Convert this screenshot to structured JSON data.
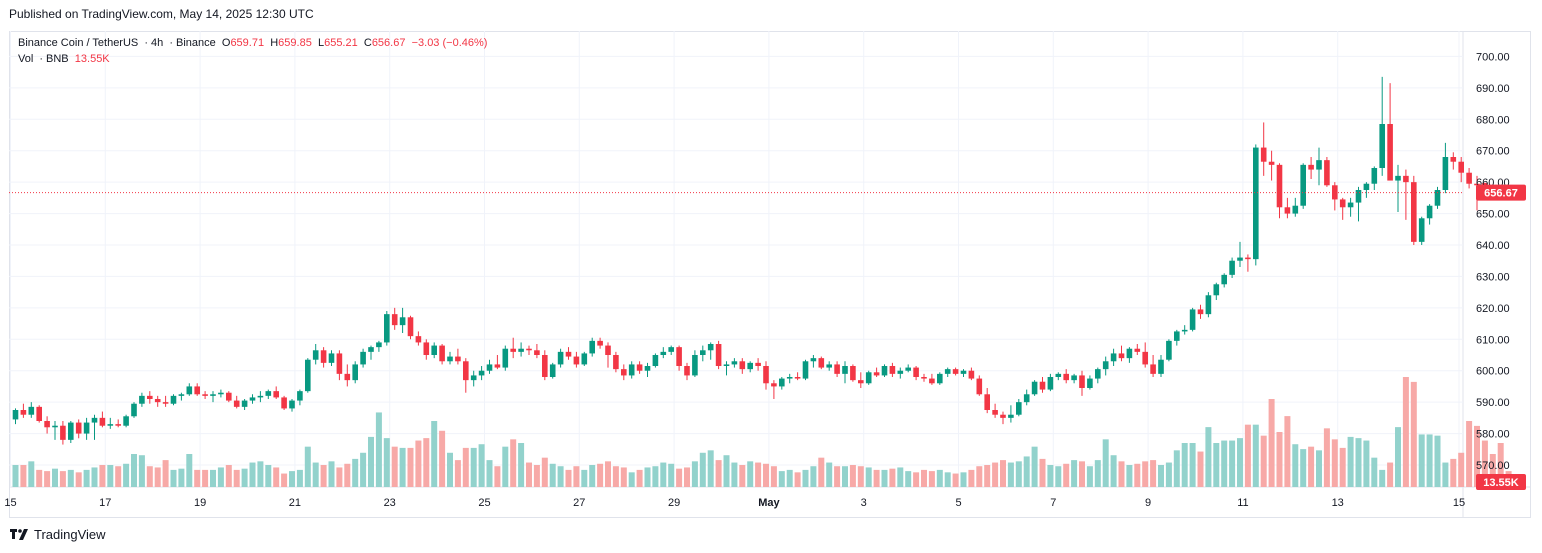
{
  "published": "Published on TradingView.com, May 14, 2025 12:30 UTC",
  "legend": {
    "symbol": "Binance Coin / TetherUS",
    "interval": "4h",
    "exchange": "Binance",
    "o_label": "O",
    "o": "659.71",
    "h_label": "H",
    "h": "659.85",
    "l_label": "L",
    "l": "655.21",
    "c_label": "C",
    "c": "656.67",
    "change": "−3.03 (−0.46%)",
    "vol_label": "Vol",
    "vol_asset": "BNB",
    "vol_value": "13.55K"
  },
  "price_badge": "656.67",
  "volume_badge": "13.55K",
  "footer": {
    "brand": "TradingView"
  },
  "colors": {
    "up": "#089981",
    "down": "#f23645",
    "vol_up": "#92d2cc",
    "vol_down": "#f7a9a7",
    "grid": "#f0f3fa",
    "text": "#131722"
  },
  "chart_data": {
    "type": "candlestick",
    "timeframe": "4h",
    "ylim": [
      563,
      703
    ],
    "y_ticks": [
      "570.00",
      "580.00",
      "590.00",
      "600.00",
      "610.00",
      "620.00",
      "630.00",
      "640.00",
      "650.00",
      "660.00",
      "670.00",
      "680.00",
      "690.00",
      "700.00"
    ],
    "x_ticks": [
      "15",
      "17",
      "19",
      "21",
      "23",
      "25",
      "27",
      "29",
      "May",
      "3",
      "5",
      "7",
      "9",
      "11",
      "13",
      "15"
    ],
    "last_price": 656.67,
    "candles": [
      [
        584.5,
        588.0,
        583.0,
        587.5
      ],
      [
        587.5,
        589.5,
        585.0,
        586.0
      ],
      [
        586.0,
        590.0,
        585.0,
        588.5
      ],
      [
        588.5,
        589.0,
        583.5,
        584.0
      ],
      [
        584.0,
        585.5,
        580.0,
        582.0
      ],
      [
        582.0,
        584.0,
        578.0,
        582.5
      ],
      [
        582.5,
        584.0,
        576.5,
        578.0
      ],
      [
        578.0,
        584.0,
        577.0,
        583.5
      ],
      [
        583.5,
        584.5,
        578.5,
        580.0
      ],
      [
        580.0,
        585.0,
        578.0,
        583.5
      ],
      [
        583.5,
        586.0,
        578.0,
        585.0
      ],
      [
        585.0,
        587.0,
        582.0,
        582.5
      ],
      [
        582.5,
        585.0,
        581.5,
        583.0
      ],
      [
        583.0,
        584.5,
        582.0,
        582.5
      ],
      [
        582.5,
        586.0,
        582.0,
        585.5
      ],
      [
        585.5,
        590.0,
        585.0,
        589.5
      ],
      [
        589.5,
        593.0,
        588.5,
        592.0
      ],
      [
        592.0,
        593.5,
        589.5,
        591.0
      ],
      [
        591.0,
        592.0,
        588.5,
        590.0
      ],
      [
        590.0,
        592.0,
        588.5,
        589.5
      ],
      [
        589.5,
        592.5,
        589.0,
        592.0
      ],
      [
        592.0,
        593.0,
        590.5,
        592.5
      ],
      [
        592.5,
        596.0,
        592.0,
        595.0
      ],
      [
        595.0,
        596.0,
        592.0,
        592.5
      ],
      [
        592.5,
        593.5,
        591.0,
        592.0
      ],
      [
        592.0,
        593.5,
        590.0,
        592.5
      ],
      [
        592.5,
        594.0,
        591.5,
        593.0
      ],
      [
        593.0,
        593.5,
        590.0,
        590.5
      ],
      [
        590.5,
        592.0,
        588.0,
        588.5
      ],
      [
        588.5,
        591.0,
        587.5,
        590.5
      ],
      [
        590.5,
        592.5,
        589.5,
        591.5
      ],
      [
        591.5,
        593.5,
        590.0,
        592.0
      ],
      [
        592.0,
        594.0,
        591.0,
        593.5
      ],
      [
        593.5,
        595.0,
        591.0,
        591.5
      ],
      [
        591.5,
        592.0,
        587.5,
        588.0
      ],
      [
        588.0,
        591.0,
        587.0,
        590.5
      ],
      [
        590.5,
        594.0,
        589.0,
        593.5
      ],
      [
        593.5,
        604.0,
        593.0,
        603.5
      ],
      [
        603.5,
        608.5,
        602.0,
        606.5
      ],
      [
        606.5,
        607.5,
        601.0,
        602.5
      ],
      [
        602.5,
        606.5,
        601.5,
        605.5
      ],
      [
        605.5,
        606.5,
        597.0,
        599.0
      ],
      [
        599.0,
        602.0,
        595.0,
        597.0
      ],
      [
        597.0,
        603.0,
        596.0,
        602.0
      ],
      [
        602.0,
        607.0,
        601.0,
        606.0
      ],
      [
        606.0,
        608.0,
        603.5,
        607.5
      ],
      [
        607.5,
        609.5,
        606.0,
        609.0
      ],
      [
        609.0,
        619.0,
        608.0,
        618.0
      ],
      [
        618.0,
        620.0,
        613.0,
        614.5
      ],
      [
        614.5,
        620.0,
        612.0,
        617.0
      ],
      [
        617.0,
        617.5,
        610.0,
        611.0
      ],
      [
        611.0,
        612.5,
        608.0,
        609.0
      ],
      [
        609.0,
        610.0,
        603.5,
        605.0
      ],
      [
        605.0,
        609.0,
        604.0,
        608.0
      ],
      [
        608.0,
        608.5,
        602.0,
        603.0
      ],
      [
        603.0,
        606.0,
        602.0,
        604.5
      ],
      [
        604.5,
        607.0,
        602.0,
        603.0
      ],
      [
        603.0,
        604.0,
        593.0,
        597.0
      ],
      [
        597.0,
        600.0,
        595.0,
        598.5
      ],
      [
        598.5,
        601.5,
        597.0,
        600.0
      ],
      [
        600.0,
        603.5,
        599.0,
        602.0
      ],
      [
        602.0,
        605.0,
        600.5,
        601.0
      ],
      [
        601.0,
        608.0,
        600.0,
        607.0
      ],
      [
        607.0,
        610.5,
        604.0,
        606.0
      ],
      [
        606.0,
        609.0,
        604.5,
        607.0
      ],
      [
        607.0,
        608.0,
        605.0,
        606.5
      ],
      [
        606.5,
        608.5,
        604.0,
        605.0
      ],
      [
        605.0,
        606.5,
        597.0,
        598.0
      ],
      [
        598.0,
        602.5,
        597.5,
        602.0
      ],
      [
        602.0,
        607.0,
        601.0,
        606.0
      ],
      [
        606.0,
        607.5,
        603.5,
        604.5
      ],
      [
        604.5,
        606.0,
        601.0,
        602.0
      ],
      [
        602.0,
        606.0,
        601.5,
        605.5
      ],
      [
        605.5,
        610.5,
        604.5,
        609.5
      ],
      [
        609.5,
        610.5,
        607.0,
        608.0
      ],
      [
        608.0,
        609.0,
        601.0,
        605.0
      ],
      [
        605.0,
        606.0,
        599.5,
        600.5
      ],
      [
        600.5,
        602.0,
        597.0,
        598.5
      ],
      [
        598.5,
        603.0,
        597.5,
        602.0
      ],
      [
        602.0,
        603.0,
        599.0,
        600.0
      ],
      [
        600.0,
        602.5,
        598.0,
        601.5
      ],
      [
        601.5,
        605.5,
        601.0,
        605.0
      ],
      [
        605.0,
        607.5,
        604.0,
        606.0
      ],
      [
        606.0,
        608.0,
        605.0,
        607.5
      ],
      [
        607.5,
        608.0,
        600.0,
        601.5
      ],
      [
        601.5,
        602.5,
        597.0,
        598.5
      ],
      [
        598.5,
        606.5,
        598.0,
        605.0
      ],
      [
        605.0,
        608.0,
        603.0,
        606.5
      ],
      [
        606.5,
        609.0,
        603.5,
        608.5
      ],
      [
        608.5,
        609.5,
        600.5,
        601.5
      ],
      [
        601.5,
        603.0,
        598.5,
        602.0
      ],
      [
        602.0,
        604.0,
        601.0,
        603.0
      ],
      [
        603.0,
        604.0,
        599.0,
        600.5
      ],
      [
        600.5,
        603.0,
        599.5,
        602.5
      ],
      [
        602.5,
        604.0,
        600.0,
        601.5
      ],
      [
        601.5,
        603.0,
        594.0,
        596.0
      ],
      [
        596.0,
        597.0,
        591.0,
        595.0
      ],
      [
        595.0,
        598.0,
        594.0,
        597.5
      ],
      [
        597.5,
        599.0,
        596.0,
        598.0
      ],
      [
        598.0,
        599.5,
        597.0,
        597.5
      ],
      [
        597.5,
        603.5,
        597.0,
        603.0
      ],
      [
        603.0,
        605.0,
        601.0,
        604.0
      ],
      [
        604.0,
        604.5,
        600.5,
        601.0
      ],
      [
        601.0,
        603.0,
        600.0,
        602.0
      ],
      [
        602.0,
        603.0,
        598.0,
        599.0
      ],
      [
        599.0,
        603.0,
        596.0,
        601.5
      ],
      [
        601.5,
        602.0,
        596.5,
        597.0
      ],
      [
        597.0,
        599.5,
        594.5,
        596.0
      ],
      [
        596.0,
        600.0,
        595.5,
        599.5
      ],
      [
        599.5,
        601.0,
        598.0,
        598.5
      ],
      [
        598.5,
        602.0,
        598.0,
        601.5
      ],
      [
        601.5,
        602.5,
        598.0,
        599.0
      ],
      [
        599.0,
        601.0,
        597.5,
        600.0
      ],
      [
        600.0,
        602.0,
        599.5,
        601.0
      ],
      [
        601.0,
        601.5,
        597.0,
        598.0
      ],
      [
        598.0,
        599.0,
        596.5,
        597.5
      ],
      [
        597.5,
        599.0,
        595.5,
        596.0
      ],
      [
        596.0,
        599.5,
        595.5,
        599.0
      ],
      [
        599.0,
        601.0,
        598.0,
        600.5
      ],
      [
        600.5,
        601.0,
        598.5,
        599.0
      ],
      [
        599.0,
        600.5,
        598.0,
        600.0
      ],
      [
        600.0,
        601.0,
        597.0,
        597.5
      ],
      [
        597.5,
        598.5,
        592.0,
        592.5
      ],
      [
        592.5,
        594.5,
        586.5,
        587.5
      ],
      [
        587.5,
        589.5,
        585.0,
        586.0
      ],
      [
        586.0,
        587.0,
        583.0,
        585.0
      ],
      [
        585.0,
        589.0,
        583.5,
        586.0
      ],
      [
        586.0,
        591.0,
        585.5,
        590.0
      ],
      [
        590.0,
        594.0,
        589.0,
        592.5
      ],
      [
        592.5,
        597.0,
        592.0,
        596.5
      ],
      [
        596.5,
        598.0,
        593.0,
        594.0
      ],
      [
        594.0,
        599.0,
        593.5,
        598.0
      ],
      [
        598.0,
        599.5,
        597.0,
        599.0
      ],
      [
        599.0,
        600.5,
        596.0,
        597.0
      ],
      [
        597.0,
        599.0,
        596.0,
        598.5
      ],
      [
        598.5,
        600.0,
        592.0,
        594.5
      ],
      [
        594.5,
        598.5,
        594.0,
        597.5
      ],
      [
        597.5,
        601.0,
        596.0,
        600.5
      ],
      [
        600.5,
        604.5,
        598.5,
        603.0
      ],
      [
        603.0,
        607.0,
        601.5,
        605.5
      ],
      [
        605.5,
        608.0,
        603.0,
        604.0
      ],
      [
        604.0,
        607.5,
        602.5,
        607.0
      ],
      [
        607.0,
        608.5,
        605.0,
        606.0
      ],
      [
        606.0,
        609.0,
        601.0,
        602.0
      ],
      [
        602.0,
        605.0,
        598.0,
        599.0
      ],
      [
        599.0,
        605.0,
        598.0,
        603.5
      ],
      [
        603.5,
        610.0,
        603.0,
        609.5
      ],
      [
        609.5,
        613.0,
        608.0,
        612.5
      ],
      [
        612.5,
        614.5,
        611.5,
        613.0
      ],
      [
        613.0,
        620.0,
        612.5,
        619.5
      ],
      [
        619.5,
        621.0,
        616.5,
        618.0
      ],
      [
        618.0,
        625.0,
        617.0,
        624.0
      ],
      [
        624.0,
        628.0,
        622.5,
        627.5
      ],
      [
        627.5,
        631.0,
        626.5,
        630.5
      ],
      [
        630.5,
        636.0,
        629.5,
        635.0
      ],
      [
        635.0,
        641.0,
        633.0,
        636.0
      ],
      [
        636.0,
        637.0,
        631.5,
        635.5
      ],
      [
        635.5,
        672.0,
        633.5,
        671.0
      ],
      [
        671.0,
        679.0,
        662.0,
        666.5
      ],
      [
        666.5,
        670.0,
        660.5,
        665.5
      ],
      [
        665.5,
        666.0,
        648.5,
        652.0
      ],
      [
        652.0,
        655.0,
        648.5,
        650.0
      ],
      [
        650.0,
        655.0,
        649.0,
        652.5
      ],
      [
        652.5,
        666.0,
        651.5,
        665.5
      ],
      [
        665.5,
        668.0,
        661.0,
        664.0
      ],
      [
        664.0,
        671.0,
        659.0,
        667.0
      ],
      [
        667.0,
        668.0,
        658.5,
        659.0
      ],
      [
        659.0,
        660.0,
        651.0,
        654.5
      ],
      [
        654.5,
        655.0,
        648.0,
        652.0
      ],
      [
        652.0,
        655.0,
        649.0,
        653.5
      ],
      [
        653.5,
        658.5,
        647.5,
        657.5
      ],
      [
        657.5,
        660.0,
        655.0,
        659.5
      ],
      [
        659.5,
        665.0,
        657.5,
        664.5
      ],
      [
        664.5,
        693.5,
        662.0,
        678.5
      ],
      [
        678.5,
        691.5,
        661.0,
        660.5
      ],
      [
        660.5,
        665.5,
        650.5,
        662.0
      ],
      [
        662.0,
        664.0,
        648.0,
        660.0
      ],
      [
        660.0,
        662.0,
        640.0,
        641.0
      ],
      [
        641.0,
        649.0,
        640.0,
        648.5
      ],
      [
        648.5,
        653.0,
        646.5,
        652.5
      ],
      [
        652.5,
        658.5,
        651.5,
        657.5
      ],
      [
        657.5,
        672.5,
        656.5,
        668.0
      ],
      [
        668.0,
        669.5,
        664.0,
        666.5
      ],
      [
        666.5,
        668.0,
        660.0,
        663.0
      ],
      [
        663.0,
        664.5,
        658.0,
        659.5
      ],
      [
        659.5,
        662.0,
        651.0,
        659.0
      ],
      [
        659.71,
        659.85,
        655.21,
        656.67
      ]
    ],
    "volumes_k": [
      18,
      18,
      21,
      14,
      13,
      15,
      13,
      14,
      12,
      14,
      16,
      18,
      18,
      17,
      19,
      27,
      26,
      17,
      16,
      22,
      14,
      15,
      27,
      14,
      14,
      14,
      16,
      18,
      14,
      15,
      20,
      21,
      18,
      16,
      11,
      13,
      14,
      33,
      20,
      18,
      21,
      16,
      19,
      23,
      28,
      41,
      61,
      40,
      33,
      32,
      32,
      38,
      40,
      54,
      46,
      28,
      22,
      32,
      32,
      35,
      22,
      17,
      33,
      39,
      36,
      20,
      18,
      24,
      19,
      17,
      14,
      17,
      14,
      18,
      19,
      21,
      17,
      16,
      12,
      14,
      16,
      17,
      20,
      19,
      15,
      16,
      21,
      28,
      30,
      22,
      26,
      20,
      18,
      21,
      20,
      19,
      17,
      13,
      14,
      12,
      14,
      17,
      24,
      20,
      17,
      17,
      18,
      17,
      16,
      14,
      14,
      15,
      16,
      13,
      12,
      14,
      13,
      14,
      12,
      11,
      12,
      14,
      17,
      18,
      20,
      22,
      20,
      21,
      25,
      33,
      23,
      18,
      17,
      19,
      22,
      21,
      17,
      22,
      39,
      26,
      21,
      18,
      19,
      21,
      22,
      18,
      20,
      30,
      36,
      36,
      29,
      49,
      36,
      38,
      38,
      40,
      51,
      51,
      42,
      72,
      45,
      58,
      35,
      31,
      33,
      30,
      48,
      39,
      32,
      41,
      40,
      38,
      24,
      14,
      20,
      49,
      90,
      86,
      43,
      43,
      42,
      20,
      23,
      28,
      54,
      50,
      38,
      27,
      36,
      13
    ]
  }
}
